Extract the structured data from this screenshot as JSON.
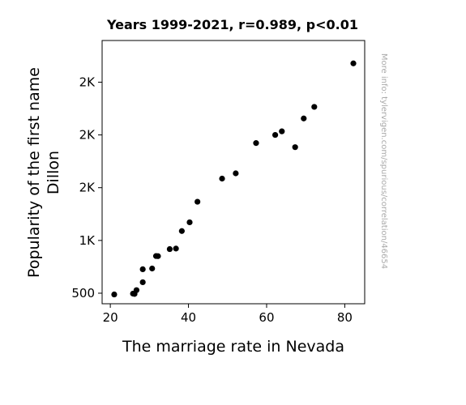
{
  "chart_data": {
    "type": "scatter",
    "title": "Years 1999-2021, r=0.989, p<0.01",
    "xlabel": "The marriage rate in Nevada",
    "ylabel_lines": [
      "Popularity of the first name",
      "Dillon"
    ],
    "xlim": [
      17.9,
      85.1
    ],
    "ylim": [
      400,
      2895
    ],
    "xticks": [
      {
        "value": 20,
        "label": "20"
      },
      {
        "value": 40,
        "label": "40"
      },
      {
        "value": 60,
        "label": "60"
      },
      {
        "value": 80,
        "label": "80"
      }
    ],
    "yticks": [
      {
        "value": 500,
        "label": "500"
      },
      {
        "value": 1000,
        "label": "1K"
      },
      {
        "value": 1500,
        "label": "2K"
      },
      {
        "value": 2000,
        "label": "2K"
      },
      {
        "value": 2500,
        "label": "2K"
      }
    ],
    "point_color": "#000000",
    "watermark": "More info: tylervigen.com/spurious/correlation/46654",
    "points": [
      {
        "x": 21.0,
        "y": 488
      },
      {
        "x": 25.8,
        "y": 496
      },
      {
        "x": 26.2,
        "y": 493
      },
      {
        "x": 26.7,
        "y": 529
      },
      {
        "x": 28.3,
        "y": 604
      },
      {
        "x": 28.3,
        "y": 727
      },
      {
        "x": 30.7,
        "y": 734
      },
      {
        "x": 31.7,
        "y": 852
      },
      {
        "x": 32.2,
        "y": 851
      },
      {
        "x": 35.2,
        "y": 918
      },
      {
        "x": 36.8,
        "y": 923
      },
      {
        "x": 38.3,
        "y": 1089
      },
      {
        "x": 40.3,
        "y": 1172
      },
      {
        "x": 42.3,
        "y": 1367
      },
      {
        "x": 48.6,
        "y": 1586
      },
      {
        "x": 52.1,
        "y": 1636
      },
      {
        "x": 57.3,
        "y": 1923
      },
      {
        "x": 62.2,
        "y": 2000
      },
      {
        "x": 63.9,
        "y": 2034
      },
      {
        "x": 67.3,
        "y": 1884
      },
      {
        "x": 69.5,
        "y": 2156
      },
      {
        "x": 72.2,
        "y": 2266
      },
      {
        "x": 82.2,
        "y": 2678
      }
    ]
  }
}
